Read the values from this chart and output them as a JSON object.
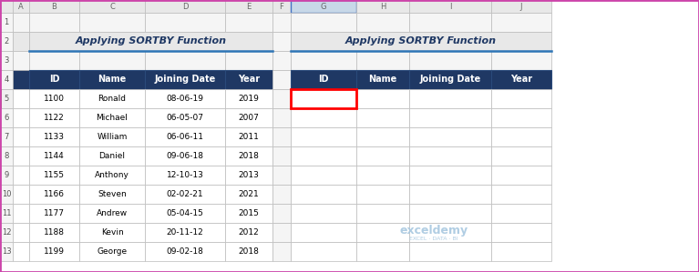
{
  "title": "Applying SORTBY Function",
  "headers": [
    "ID",
    "Name",
    "Joining Date",
    "Year"
  ],
  "left_data": [
    [
      1100,
      "Ronald",
      "08-06-19",
      2019
    ],
    [
      1122,
      "Michael",
      "06-05-07",
      2007
    ],
    [
      1133,
      "William",
      "06-06-11",
      2011
    ],
    [
      1144,
      "Daniel",
      "09-06-18",
      2018
    ],
    [
      1155,
      "Anthony",
      "12-10-13",
      2013
    ],
    [
      1166,
      "Steven",
      "02-02-21",
      2021
    ],
    [
      1177,
      "Andrew",
      "05-04-15",
      2015
    ],
    [
      1188,
      "Kevin",
      "20-11-12",
      2012
    ],
    [
      1199,
      "George",
      "09-02-18",
      2018
    ]
  ],
  "header_bg": "#1F3864",
  "header_fg": "#FFFFFF",
  "title_fg": "#1F3864",
  "title_bg": "#E8E8E8",
  "col_header_bg": "#E8E8E8",
  "col_header_fg": "#666666",
  "row_header_bg": "#F5F5F5",
  "row_header_fg": "#555555",
  "title_underline_color": "#2E75B6",
  "red_cell_color": "#FF0000",
  "watermark_color": "#A8C8E0",
  "cell_border": "#C0C0C0",
  "bg_outer": "#FFFFFF",
  "g_col_header_bg": "#C8D8E8"
}
